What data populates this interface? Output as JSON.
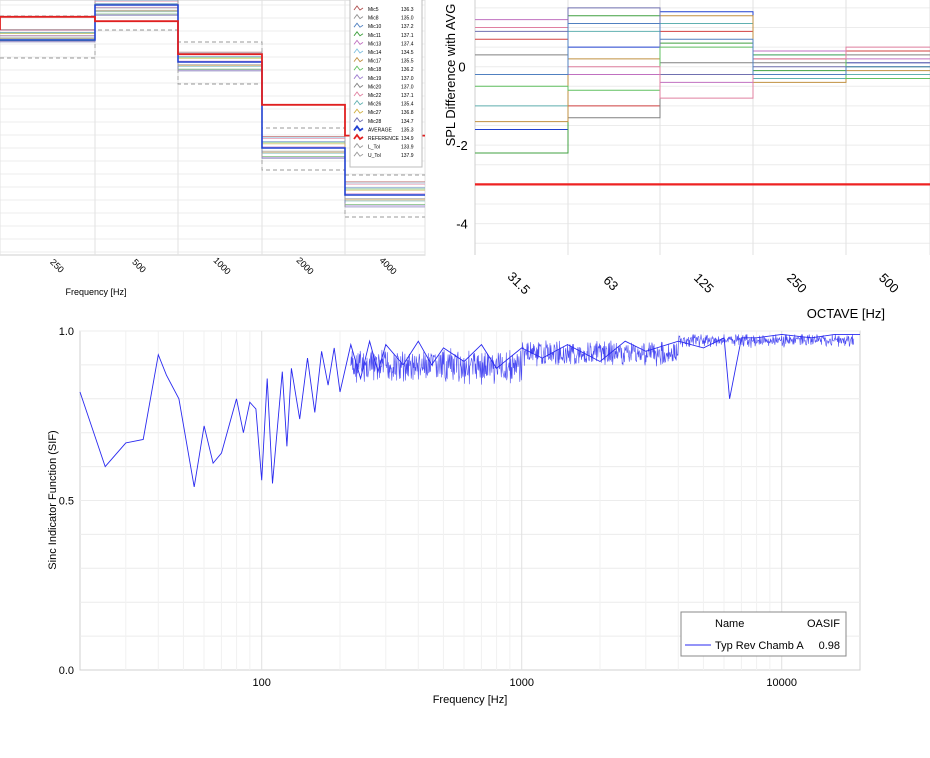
{
  "chart_data": [
    {
      "type": "line",
      "xlabel": "Frequency [Hz]",
      "x_ticks": [
        "250",
        "500",
        "1000",
        "2000",
        "4000"
      ],
      "legend": {
        "placement": "top-right",
        "entries": [
          {
            "name": "Mic5",
            "value": "136.3",
            "color": "#b05050"
          },
          {
            "name": "Mic8",
            "value": "135.0",
            "color": "#909090"
          },
          {
            "name": "Mic10",
            "value": "137.2",
            "color": "#5080c0"
          },
          {
            "name": "Mic11",
            "value": "137.1",
            "color": "#40a040"
          },
          {
            "name": "Mic13",
            "value": "137.4",
            "color": "#c070c0"
          },
          {
            "name": "Mic14",
            "value": "134.5",
            "color": "#80c0e0"
          },
          {
            "name": "Mic17",
            "value": "135.5",
            "color": "#c09040"
          },
          {
            "name": "Mic18",
            "value": "136.2",
            "color": "#60c060"
          },
          {
            "name": "Mic19",
            "value": "137.0",
            "color": "#a080d0"
          },
          {
            "name": "Mic20",
            "value": "137.0",
            "color": "#808080"
          },
          {
            "name": "Mic22",
            "value": "137.1",
            "color": "#e080a0"
          },
          {
            "name": "Mic26",
            "value": "135.4",
            "color": "#60b0b0"
          },
          {
            "name": "Mic27",
            "value": "136.8",
            "color": "#d0b040"
          },
          {
            "name": "Mic28",
            "value": "134.7",
            "color": "#7070b0"
          },
          {
            "name": "AVERAGE",
            "value": "135.3",
            "color": "#2040d0"
          },
          {
            "name": "REFERENCE",
            "value": "134.9",
            "color": "#e02020"
          },
          {
            "name": "L_Tol",
            "value": "133.9",
            "color": "#999999"
          },
          {
            "name": "U_Tol",
            "value": "137.9",
            "color": "#999999"
          }
        ]
      },
      "reference_levels": [
        {
          "x": "125",
          "value": 10.0
        },
        {
          "x": "250",
          "value": 10.6
        },
        {
          "x": "500",
          "value": 10.4
        },
        {
          "x": "1000",
          "value": 8.9
        },
        {
          "x": "2000",
          "value": 6.6
        },
        {
          "x": "4000",
          "value": 5.2
        }
      ]
    },
    {
      "type": "line",
      "ylabel": "SPL Difference with AVG",
      "xlabel": "OCTAVE [Hz]",
      "categories": [
        "31.5",
        "63",
        "125",
        "250",
        "500"
      ],
      "y_ticks": [
        "-4",
        "-2",
        "0"
      ],
      "ylim": [
        -4.8,
        1.7
      ],
      "series": [
        {
          "values": [
            -3.0,
            -3.0,
            -3.0,
            -3.0,
            -3.0
          ],
          "color": "#ee2222"
        },
        {
          "values": [
            -1.6,
            0.5,
            1.4,
            0.3,
            0.1
          ],
          "color": "#2040d0"
        },
        {
          "values": [
            0.7,
            -1.0,
            0.9,
            0.2,
            0.4
          ],
          "color": "#d04040"
        },
        {
          "values": [
            -2.2,
            1.3,
            0.6,
            -0.1,
            0.0
          ],
          "color": "#40a040"
        },
        {
          "values": [
            1.2,
            -0.2,
            -0.4,
            0.4,
            0.2
          ],
          "color": "#c070c0"
        },
        {
          "values": [
            -1.0,
            0.9,
            1.1,
            -0.3,
            -0.2
          ],
          "color": "#60b0b0"
        },
        {
          "values": [
            0.3,
            -1.3,
            0.1,
            0.1,
            0.3
          ],
          "color": "#808080"
        },
        {
          "values": [
            -1.4,
            0.2,
            1.3,
            -0.4,
            -0.1
          ],
          "color": "#c09040"
        },
        {
          "values": [
            0.9,
            1.5,
            -0.2,
            0.0,
            0.1
          ],
          "color": "#7070b0"
        },
        {
          "values": [
            -0.5,
            -0.6,
            0.5,
            0.3,
            -0.3
          ],
          "color": "#60c060"
        },
        {
          "values": [
            1.0,
            0.0,
            -0.8,
            0.2,
            0.5
          ],
          "color": "#e080a0"
        },
        {
          "values": [
            -0.2,
            1.1,
            0.7,
            -0.2,
            0.0
          ],
          "color": "#5080c0"
        }
      ]
    },
    {
      "type": "line",
      "ylabel": "Sinc Indicator Function (SIF)",
      "xlabel": "Frequency [Hz]",
      "x_scale": "log",
      "xlim": [
        20,
        20000
      ],
      "ylim": [
        0.0,
        1.0
      ],
      "x_ticks": [
        "100",
        "1000",
        "10000"
      ],
      "y_ticks": [
        "0.0",
        "0.5",
        "1.0"
      ],
      "legend": {
        "placement": "bottom-right",
        "header_name": "Name",
        "header_value": "OASIF",
        "entries": [
          {
            "name": "Typ Rev Chamb A",
            "value": "0.98",
            "color": "#2a2af0"
          }
        ]
      },
      "series": [
        {
          "name": "Typ Rev Chamb A",
          "color": "#2a2af0",
          "x": [
            20,
            25,
            30,
            35,
            40,
            43,
            48,
            55,
            60,
            65,
            70,
            80,
            85,
            90,
            95,
            100,
            105,
            110,
            120,
            125,
            130,
            140,
            150,
            160,
            170,
            180,
            190,
            200,
            220,
            240,
            260,
            280,
            300,
            350,
            400,
            450,
            500,
            600,
            700,
            800,
            1000,
            1200,
            1500,
            2000,
            2500,
            3000,
            4000,
            5000,
            6000,
            6300,
            7000,
            8000,
            10000,
            13000,
            16000,
            20000
          ],
          "values": [
            0.82,
            0.6,
            0.67,
            0.68,
            0.93,
            0.87,
            0.8,
            0.54,
            0.72,
            0.61,
            0.64,
            0.8,
            0.7,
            0.79,
            0.77,
            0.56,
            0.86,
            0.55,
            0.88,
            0.66,
            0.89,
            0.74,
            0.92,
            0.76,
            0.94,
            0.84,
            0.95,
            0.82,
            0.96,
            0.86,
            0.97,
            0.88,
            0.96,
            0.9,
            0.97,
            0.9,
            0.95,
            0.91,
            0.96,
            0.89,
            0.95,
            0.92,
            0.96,
            0.91,
            0.97,
            0.94,
            0.97,
            0.95,
            0.98,
            0.8,
            0.98,
            0.98,
            0.99,
            0.98,
            0.99,
            0.99
          ]
        }
      ]
    }
  ]
}
